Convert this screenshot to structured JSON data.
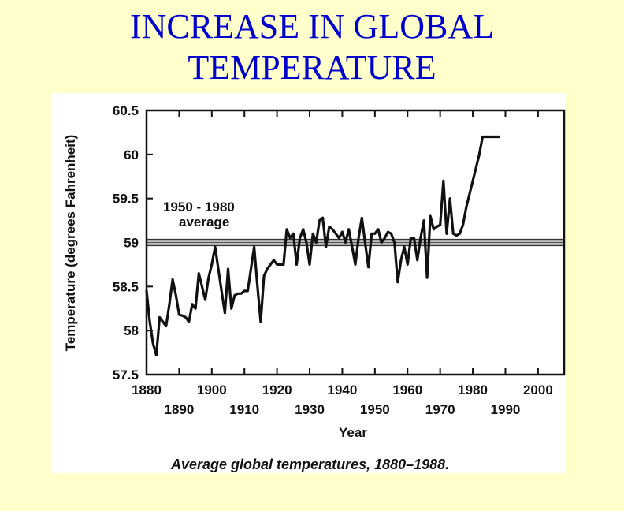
{
  "slide": {
    "title_line1": "INCREASE IN GLOBAL",
    "title_line2": "TEMPERATURE"
  },
  "colors": {
    "background": "#ffffcc",
    "title": "#0000cc",
    "line": "#111111"
  },
  "chart_data": {
    "type": "line",
    "title": "Average global temperatures, 1880–1988.",
    "xlabel": "Year",
    "ylabel": "Temperature (degrees Fahrenheit)",
    "xlim": [
      1880,
      2008
    ],
    "ylim": [
      57.5,
      60.5
    ],
    "xticks_upper": [
      "1880",
      "1900",
      "1920",
      "1940",
      "1960",
      "1980",
      "2000"
    ],
    "xticks_lower": [
      "1890",
      "1910",
      "1930",
      "1950",
      "1970",
      "1990"
    ],
    "yticks": [
      "60.5",
      "60",
      "59.5",
      "59",
      "58.5",
      "58",
      "57.5"
    ],
    "average_band": {
      "label_line1": "1950 - 1980",
      "label_line2": "average",
      "value": 59.0
    },
    "x": [
      1880,
      1881,
      1882,
      1883,
      1884,
      1885,
      1886,
      1887,
      1888,
      1889,
      1890,
      1891,
      1892,
      1893,
      1894,
      1895,
      1896,
      1897,
      1898,
      1899,
      1900,
      1901,
      1902,
      1903,
      1904,
      1905,
      1906,
      1907,
      1908,
      1909,
      1910,
      1911,
      1912,
      1913,
      1914,
      1915,
      1916,
      1917,
      1918,
      1919,
      1920,
      1921,
      1922,
      1923,
      1924,
      1925,
      1926,
      1927,
      1928,
      1929,
      1930,
      1931,
      1932,
      1933,
      1934,
      1935,
      1936,
      1937,
      1938,
      1939,
      1940,
      1941,
      1942,
      1943,
      1944,
      1945,
      1946,
      1947,
      1948,
      1949,
      1950,
      1951,
      1952,
      1953,
      1954,
      1955,
      1956,
      1957,
      1958,
      1959,
      1960,
      1961,
      1962,
      1963,
      1964,
      1965,
      1966,
      1967,
      1968,
      1969,
      1970,
      1971,
      1972,
      1973,
      1974,
      1975,
      1976,
      1977,
      1978,
      1979,
      1980,
      1981,
      1982,
      1983,
      1984,
      1985,
      1986,
      1987,
      1988
    ],
    "values": [
      58.45,
      58.1,
      57.85,
      57.72,
      58.15,
      58.1,
      58.05,
      58.3,
      58.58,
      58.4,
      58.18,
      58.17,
      58.15,
      58.1,
      58.3,
      58.25,
      58.65,
      58.5,
      58.35,
      58.6,
      58.75,
      58.95,
      58.7,
      58.45,
      58.2,
      58.7,
      58.25,
      58.4,
      58.42,
      58.42,
      58.45,
      58.45,
      58.7,
      58.95,
      58.5,
      58.1,
      58.62,
      58.7,
      58.75,
      58.8,
      58.75,
      58.75,
      58.75,
      59.15,
      59.05,
      59.1,
      58.75,
      59.05,
      59.15,
      59.0,
      58.75,
      59.1,
      59.0,
      59.25,
      59.28,
      58.95,
      59.18,
      59.15,
      59.1,
      59.05,
      59.12,
      59.0,
      59.15,
      58.95,
      58.75,
      59.05,
      59.28,
      59.0,
      58.72,
      59.1,
      59.1,
      59.15,
      59.0,
      59.05,
      59.12,
      59.1,
      59.0,
      58.55,
      58.8,
      58.95,
      58.75,
      59.05,
      59.05,
      58.8,
      59.05,
      59.25,
      58.6,
      59.3,
      59.15,
      59.18,
      59.2,
      59.7,
      59.1,
      59.5,
      59.1,
      59.08,
      59.1,
      59.2,
      59.4,
      59.55,
      59.7,
      59.85,
      60.0,
      60.2,
      60.2,
      60.2,
      60.2,
      60.2,
      60.2
    ]
  }
}
